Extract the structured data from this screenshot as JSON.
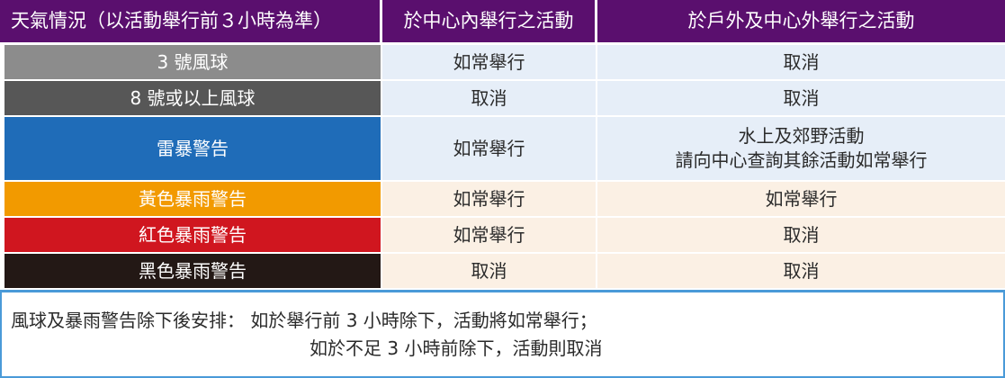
{
  "colors": {
    "header_bg": "#5a0f6e",
    "row_blue_light": "#e6eef8",
    "row_warm_light": "#fbf0e4",
    "footer_border": "#4a9ad8"
  },
  "header": {
    "col1": "天氣情況（以活動舉行前３小時為準）",
    "col2": "於中心內舉行之活動",
    "col3": "於戶外及中心外舉行之活動"
  },
  "rows": [
    {
      "label": "3 號風球",
      "label_bg": "#8c8c8c",
      "indoor": "如常舉行",
      "outdoor": [
        "取消"
      ],
      "cell_bg": "#e6eef8"
    },
    {
      "label": "8 號或以上風球",
      "label_bg": "#575757",
      "indoor": "取消",
      "outdoor": [
        "取消"
      ],
      "cell_bg": "#e6eef8"
    },
    {
      "label": "雷暴警告",
      "label_bg": "#1f6cb8",
      "indoor": "如常舉行",
      "outdoor": [
        "水上及郊野活動",
        "請向中心查詢其餘活動如常舉行"
      ],
      "cell_bg": "#e6eef8"
    },
    {
      "label": "黃色暴雨警告",
      "label_bg": "#f29a00",
      "indoor": "如常舉行",
      "outdoor": [
        "如常舉行"
      ],
      "cell_bg": "#fbf0e4"
    },
    {
      "label": "紅色暴雨警告",
      "label_bg": "#d0161f",
      "indoor": "如常舉行",
      "outdoor": [
        "取消"
      ],
      "cell_bg": "#fbf0e4"
    },
    {
      "label": "黑色暴雨警告",
      "label_bg": "#231815",
      "indoor": "取消",
      "outdoor": [
        "取消"
      ],
      "cell_bg": "#fbf0e4"
    }
  ],
  "footer": {
    "line1": "風球及暴雨警告除下後安排： 如於舉行前 3 小時除下，活動將如常舉行；",
    "line2": "如於不足 3 小時前除下，活動則取消"
  }
}
